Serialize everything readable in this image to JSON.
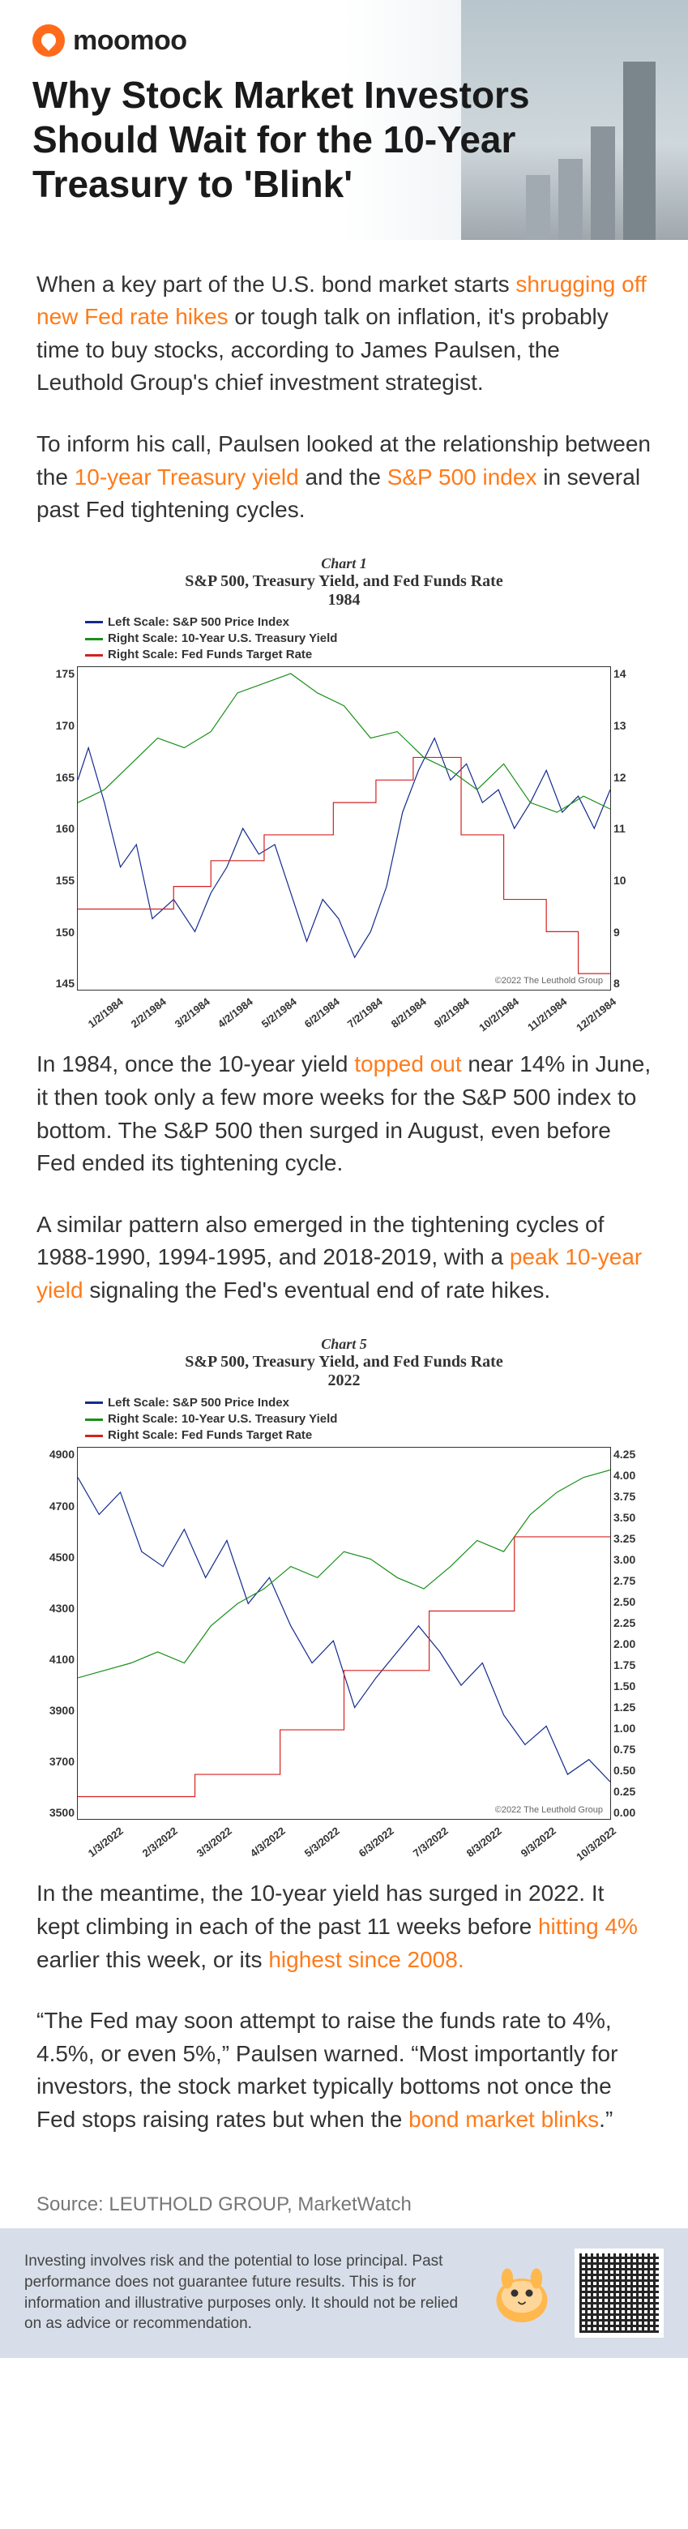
{
  "brand": {
    "name": "moomoo"
  },
  "headline": "Why Stock Market Investors Should Wait for the 10-Year Treasury to 'Blink'",
  "para1": {
    "pre": "When a key part of the U.S. bond market starts ",
    "hl": "shrugging off new Fed rate hikes",
    "post": " or tough talk on inflation, it's probably time to buy stocks, according to James Paulsen, the Leuthold Group's chief investment strategist."
  },
  "para2": {
    "pre": "To inform his call, Paulsen looked at the relationship between the ",
    "hl1": "10-year Treasury yield",
    "mid": " and the ",
    "hl2": "S&P 500 index",
    "post": " in several past Fed tightening cycles."
  },
  "chart1": {
    "sup": "Chart 1",
    "title": "S&P 500, Treasury Yield, and Fed Funds Rate",
    "year": "1984",
    "legend": [
      {
        "color": "#142a8f",
        "label": "Left Scale: S&P 500 Price Index"
      },
      {
        "color": "#1a8f1a",
        "label": "Right Scale: 10-Year U.S. Treasury Yield"
      },
      {
        "color": "#d62020",
        "label": "Right Scale: Fed Funds Target Rate"
      }
    ],
    "axis_left": [
      "175",
      "170",
      "165",
      "160",
      "155",
      "150",
      "145"
    ],
    "axis_right": [
      "14",
      "13",
      "12",
      "11",
      "10",
      "9",
      "8"
    ],
    "axis_bottom": [
      "1/2/1984",
      "2/2/1984",
      "3/2/1984",
      "4/2/1984",
      "5/2/1984",
      "6/2/1984",
      "7/2/1984",
      "8/2/1984",
      "9/2/1984",
      "10/2/1984",
      "11/2/1984",
      "12/2/1984"
    ],
    "copyright": "©2022 The Leuthold Group",
    "series": {
      "sp500": {
        "color": "#142a8f",
        "width": 2,
        "points": [
          [
            0,
            0.35
          ],
          [
            0.02,
            0.25
          ],
          [
            0.05,
            0.42
          ],
          [
            0.08,
            0.62
          ],
          [
            0.11,
            0.55
          ],
          [
            0.14,
            0.78
          ],
          [
            0.18,
            0.72
          ],
          [
            0.22,
            0.82
          ],
          [
            0.25,
            0.7
          ],
          [
            0.28,
            0.62
          ],
          [
            0.31,
            0.5
          ],
          [
            0.34,
            0.58
          ],
          [
            0.37,
            0.55
          ],
          [
            0.4,
            0.7
          ],
          [
            0.43,
            0.85
          ],
          [
            0.46,
            0.72
          ],
          [
            0.49,
            0.78
          ],
          [
            0.52,
            0.9
          ],
          [
            0.55,
            0.82
          ],
          [
            0.58,
            0.68
          ],
          [
            0.61,
            0.45
          ],
          [
            0.64,
            0.32
          ],
          [
            0.67,
            0.22
          ],
          [
            0.7,
            0.35
          ],
          [
            0.73,
            0.3
          ],
          [
            0.76,
            0.42
          ],
          [
            0.79,
            0.38
          ],
          [
            0.82,
            0.5
          ],
          [
            0.85,
            0.42
          ],
          [
            0.88,
            0.32
          ],
          [
            0.91,
            0.45
          ],
          [
            0.94,
            0.4
          ],
          [
            0.97,
            0.5
          ],
          [
            1.0,
            0.38
          ]
        ]
      },
      "yield": {
        "color": "#1a8f1a",
        "width": 2,
        "points": [
          [
            0,
            0.42
          ],
          [
            0.05,
            0.38
          ],
          [
            0.1,
            0.3
          ],
          [
            0.15,
            0.22
          ],
          [
            0.2,
            0.25
          ],
          [
            0.25,
            0.2
          ],
          [
            0.3,
            0.08
          ],
          [
            0.35,
            0.05
          ],
          [
            0.4,
            0.02
          ],
          [
            0.45,
            0.08
          ],
          [
            0.5,
            0.12
          ],
          [
            0.55,
            0.22
          ],
          [
            0.6,
            0.2
          ],
          [
            0.65,
            0.28
          ],
          [
            0.7,
            0.32
          ],
          [
            0.75,
            0.38
          ],
          [
            0.8,
            0.3
          ],
          [
            0.85,
            0.42
          ],
          [
            0.9,
            0.45
          ],
          [
            0.95,
            0.4
          ],
          [
            1.0,
            0.44
          ]
        ]
      },
      "fedfunds": {
        "color": "#d62020",
        "width": 2,
        "points": [
          [
            0,
            0.75
          ],
          [
            0.18,
            0.75
          ],
          [
            0.18,
            0.68
          ],
          [
            0.25,
            0.68
          ],
          [
            0.25,
            0.6
          ],
          [
            0.35,
            0.6
          ],
          [
            0.35,
            0.52
          ],
          [
            0.48,
            0.52
          ],
          [
            0.48,
            0.42
          ],
          [
            0.56,
            0.42
          ],
          [
            0.56,
            0.35
          ],
          [
            0.63,
            0.35
          ],
          [
            0.63,
            0.28
          ],
          [
            0.72,
            0.28
          ],
          [
            0.72,
            0.52
          ],
          [
            0.8,
            0.52
          ],
          [
            0.8,
            0.72
          ],
          [
            0.88,
            0.72
          ],
          [
            0.88,
            0.82
          ],
          [
            0.94,
            0.82
          ],
          [
            0.94,
            0.95
          ],
          [
            1.0,
            0.95
          ]
        ]
      }
    },
    "ylim_left": [
      145,
      175
    ],
    "ylim_right": [
      8,
      14
    ],
    "background": "#ffffff",
    "border": "#333333"
  },
  "para3": {
    "pre": "In 1984, once the 10-year yield ",
    "hl": "topped out",
    "post": " near 14% in June, it then took only a few more weeks for the S&P 500 index to bottom. The S&P 500 then surged in August, even before Fed ended its tightening cycle."
  },
  "para4": {
    "pre": "A similar pattern also emerged in the tightening cycles of 1988-1990, 1994-1995, and 2018-2019, with a ",
    "hl": "peak 10-year yield",
    "post": " signaling the Fed's eventual end of rate hikes."
  },
  "chart2": {
    "sup": "Chart 5",
    "title": "S&P 500, Treasury Yield, and Fed Funds Rate",
    "year": "2022",
    "legend": [
      {
        "color": "#142a8f",
        "label": "Left Scale: S&P 500 Price Index"
      },
      {
        "color": "#1a8f1a",
        "label": "Right Scale: 10-Year U.S. Treasury Yield"
      },
      {
        "color": "#d62020",
        "label": "Right Scale: Fed Funds Target Rate"
      }
    ],
    "axis_left": [
      "4900",
      "4700",
      "4500",
      "4300",
      "4100",
      "3900",
      "3700",
      "3500"
    ],
    "axis_right": [
      "4.25",
      "4.00",
      "3.75",
      "3.50",
      "3.25",
      "3.00",
      "2.75",
      "2.50",
      "2.25",
      "2.00",
      "1.75",
      "1.50",
      "1.25",
      "1.00",
      "0.75",
      "0.50",
      "0.25",
      "0.00"
    ],
    "axis_bottom": [
      "1/3/2022",
      "2/3/2022",
      "3/3/2022",
      "4/3/2022",
      "5/3/2022",
      "6/3/2022",
      "7/3/2022",
      "8/3/2022",
      "9/3/2022",
      "10/3/2022"
    ],
    "copyright": "©2022 The Leuthold Group",
    "series": {
      "sp500": {
        "color": "#142a8f",
        "width": 2,
        "points": [
          [
            0,
            0.08
          ],
          [
            0.04,
            0.18
          ],
          [
            0.08,
            0.12
          ],
          [
            0.12,
            0.28
          ],
          [
            0.16,
            0.32
          ],
          [
            0.2,
            0.22
          ],
          [
            0.24,
            0.35
          ],
          [
            0.28,
            0.25
          ],
          [
            0.32,
            0.42
          ],
          [
            0.36,
            0.35
          ],
          [
            0.4,
            0.48
          ],
          [
            0.44,
            0.58
          ],
          [
            0.48,
            0.52
          ],
          [
            0.52,
            0.7
          ],
          [
            0.56,
            0.62
          ],
          [
            0.6,
            0.55
          ],
          [
            0.64,
            0.48
          ],
          [
            0.68,
            0.55
          ],
          [
            0.72,
            0.64
          ],
          [
            0.76,
            0.58
          ],
          [
            0.8,
            0.72
          ],
          [
            0.84,
            0.8
          ],
          [
            0.88,
            0.75
          ],
          [
            0.92,
            0.88
          ],
          [
            0.96,
            0.84
          ],
          [
            1.0,
            0.9
          ]
        ]
      },
      "yield": {
        "color": "#1a8f1a",
        "width": 2,
        "points": [
          [
            0,
            0.62
          ],
          [
            0.05,
            0.6
          ],
          [
            0.1,
            0.58
          ],
          [
            0.15,
            0.55
          ],
          [
            0.2,
            0.58
          ],
          [
            0.25,
            0.48
          ],
          [
            0.3,
            0.42
          ],
          [
            0.35,
            0.38
          ],
          [
            0.4,
            0.32
          ],
          [
            0.45,
            0.35
          ],
          [
            0.5,
            0.28
          ],
          [
            0.55,
            0.3
          ],
          [
            0.6,
            0.35
          ],
          [
            0.65,
            0.38
          ],
          [
            0.7,
            0.32
          ],
          [
            0.75,
            0.25
          ],
          [
            0.8,
            0.28
          ],
          [
            0.85,
            0.18
          ],
          [
            0.9,
            0.12
          ],
          [
            0.95,
            0.08
          ],
          [
            1.0,
            0.06
          ]
        ]
      },
      "fedfunds": {
        "color": "#d62020",
        "width": 2,
        "points": [
          [
            0,
            0.94
          ],
          [
            0.22,
            0.94
          ],
          [
            0.22,
            0.88
          ],
          [
            0.38,
            0.88
          ],
          [
            0.38,
            0.76
          ],
          [
            0.5,
            0.76
          ],
          [
            0.5,
            0.6
          ],
          [
            0.66,
            0.6
          ],
          [
            0.66,
            0.44
          ],
          [
            0.82,
            0.44
          ],
          [
            0.82,
            0.24
          ],
          [
            1.0,
            0.24
          ]
        ]
      }
    },
    "ylim_left": [
      3500,
      4900
    ],
    "ylim_right": [
      0.0,
      4.25
    ],
    "background": "#ffffff",
    "border": "#333333"
  },
  "para5": {
    "pre": "In the meantime, the 10-year yield has surged in 2022. It kept climbing in each of the past 11 weeks before ",
    "hl1": "hitting 4%",
    "mid": " earlier this week, or its ",
    "hl2": "highest since 2008.",
    "post": ""
  },
  "para6": {
    "pre": "“The Fed may soon attempt to raise the funds rate to 4%, 4.5%, or even 5%,” Paulsen warned. “Most importantly for investors, the stock market typically bottoms not once the Fed stops raising rates but when the ",
    "hl": "bond market blinks",
    "post": ".”"
  },
  "source": "Source: LEUTHOLD GROUP, MarketWatch",
  "disclaimer": "Investing involves risk and the potential to lose principal. Past performance does not guarantee future results. This is for information and illustrative purposes only. It should not be relied on as advice or recommendation.",
  "colors": {
    "highlight": "#ff7b1a",
    "footer_bg": "#d7dee9",
    "brand": "#ff6b1a"
  }
}
